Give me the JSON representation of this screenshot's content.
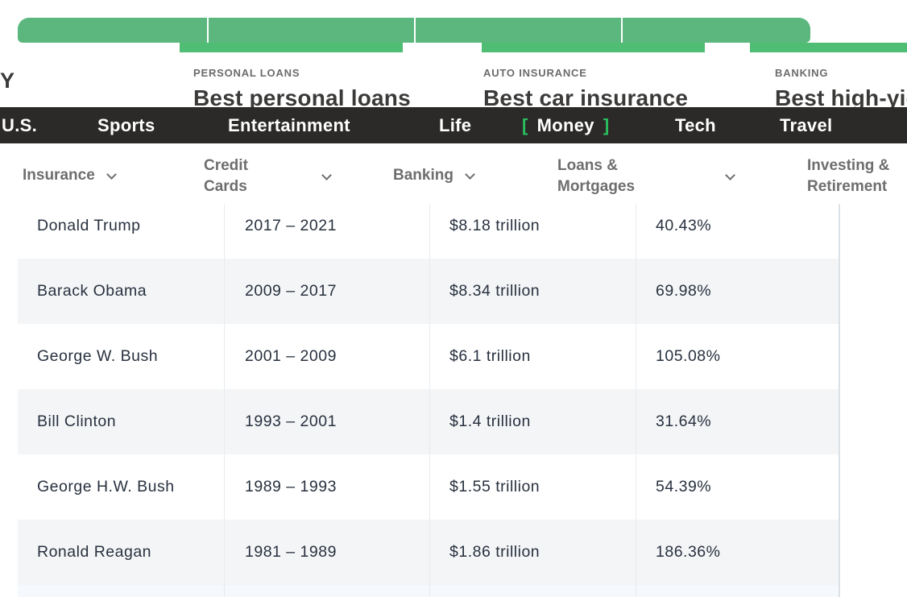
{
  "colors": {
    "carousel_bar_green": "#5bb77d",
    "carousel_strip_green": "#4fbd73",
    "primary_nav_bg": "#2b2a29",
    "money_bracket_green": "#2abf5f",
    "zebra_row_bg": "#f4f5f7"
  },
  "promo": {
    "cut_headline_fragment": "Y",
    "cards": [
      {
        "eyebrow": "PERSONAL LOANS",
        "title": "Best personal loans"
      },
      {
        "eyebrow": "AUTO INSURANCE",
        "title": "Best car insurance"
      },
      {
        "eyebrow": "BANKING",
        "title": "Best high-yield"
      }
    ]
  },
  "primary_nav": {
    "items": [
      "U.S.",
      "Sports",
      "Entertainment",
      "Life",
      "Money",
      "Tech",
      "Travel"
    ],
    "active_item": "Money",
    "bracket_open": "[",
    "bracket_close": "]"
  },
  "secondary_nav": {
    "items": [
      "Insurance",
      "Credit Cards",
      "Banking",
      "Loans & Mortgages",
      "Investing & Retirement"
    ]
  },
  "debt_table": {
    "rows": [
      {
        "president": "Donald Trump",
        "term": "2017 – 2021",
        "debt_added": "$8.18 trillion",
        "percent_increase": "40.43%"
      },
      {
        "president": "Barack Obama",
        "term": "2009 – 2017",
        "debt_added": "$8.34 trillion",
        "percent_increase": "69.98%"
      },
      {
        "president": "George W. Bush",
        "term": "2001 – 2009",
        "debt_added": "$6.1 trillion",
        "percent_increase": "105.08%"
      },
      {
        "president": "Bill Clinton",
        "term": "1993 – 2001",
        "debt_added": "$1.4 trillion",
        "percent_increase": "31.64%"
      },
      {
        "president": "George H.W. Bush",
        "term": "1989 – 1993",
        "debt_added": "$1.55 trillion",
        "percent_increase": "54.39%"
      },
      {
        "president": "Ronald Reagan",
        "term": "1981 – 1989",
        "debt_added": "$1.86 trillion",
        "percent_increase": "186.36%"
      }
    ]
  }
}
